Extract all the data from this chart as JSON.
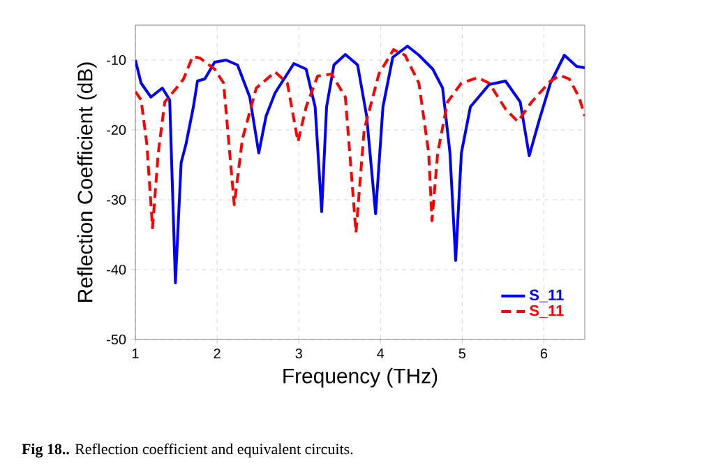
{
  "chart_data": {
    "type": "line",
    "xlabel": "Frequency (THz)",
    "ylabel": "Reflection Coefficient (dB)",
    "xlim": [
      1,
      6.5
    ],
    "ylim": [
      -50,
      -5
    ],
    "xticks": [
      1,
      2,
      3,
      4,
      5,
      6
    ],
    "yticks": [
      -50,
      -40,
      -30,
      -20,
      -10
    ],
    "grid": true,
    "legend": "bottom right",
    "marker": "none",
    "annotations": [
      "**Fig 18..** Reflection coefficient and equivalent circuits."
    ],
    "series": [
      {
        "name": "S_11",
        "color": "#0000ff",
        "line_style": "solid",
        "x": [
          1.0,
          1.07,
          1.19,
          1.33,
          1.42,
          1.49,
          1.56,
          1.62,
          1.71,
          1.76,
          1.85,
          1.97,
          2.11,
          2.25,
          2.4,
          2.51,
          2.6,
          2.71,
          2.94,
          3.09,
          3.2,
          3.28,
          3.34,
          3.43,
          3.57,
          3.72,
          3.83,
          3.94,
          4.03,
          4.15,
          4.33,
          4.47,
          4.64,
          4.76,
          4.85,
          4.92,
          4.99,
          5.1,
          5.33,
          5.53,
          5.71,
          5.82,
          5.94,
          6.08,
          6.25,
          6.4,
          6.5
        ],
        "values": [
          -10,
          -13.3,
          -15.3,
          -14,
          -15.7,
          -41.9,
          -24.7,
          -22,
          -16.7,
          -13,
          -12.7,
          -10.3,
          -10,
          -10.7,
          -15.3,
          -23.3,
          -18,
          -14.7,
          -10.5,
          -11.3,
          -16.7,
          -31.7,
          -16.7,
          -10.7,
          -9.2,
          -10.7,
          -18,
          -32,
          -16.7,
          -9.6,
          -8,
          -9.3,
          -11.3,
          -14,
          -23.3,
          -38.7,
          -23.3,
          -16.7,
          -13.5,
          -13,
          -16,
          -23.7,
          -18.7,
          -13.3,
          -9.3,
          -10.9,
          -11.1
        ]
      },
      {
        "name": "S_11",
        "color": "#ff0000",
        "line_style": "dashed",
        "x": [
          1.0,
          1.07,
          1.14,
          1.21,
          1.28,
          1.36,
          1.51,
          1.59,
          1.7,
          1.79,
          1.97,
          2.08,
          2.21,
          2.31,
          2.48,
          2.71,
          2.86,
          2.99,
          3.09,
          3.23,
          3.4,
          3.57,
          3.7,
          3.8,
          3.98,
          4.16,
          4.3,
          4.47,
          4.59,
          4.63,
          4.7,
          4.82,
          4.99,
          5.19,
          5.33,
          5.53,
          5.68,
          5.85,
          6.08,
          6.2,
          6.31,
          6.43,
          6.5
        ],
        "values": [
          -14.5,
          -15.7,
          -22,
          -34,
          -23.3,
          -16,
          -13.9,
          -12.7,
          -9.5,
          -9.7,
          -11.3,
          -13.3,
          -30.7,
          -21.3,
          -14,
          -11.7,
          -13.3,
          -21.7,
          -16.7,
          -12.3,
          -12,
          -15.3,
          -34.7,
          -20,
          -12,
          -8.5,
          -9.3,
          -13.3,
          -23.3,
          -33,
          -23.3,
          -16,
          -13.3,
          -12.5,
          -13.3,
          -17,
          -18.8,
          -16,
          -13,
          -12.2,
          -12.7,
          -15.3,
          -18
        ]
      }
    ]
  }
}
